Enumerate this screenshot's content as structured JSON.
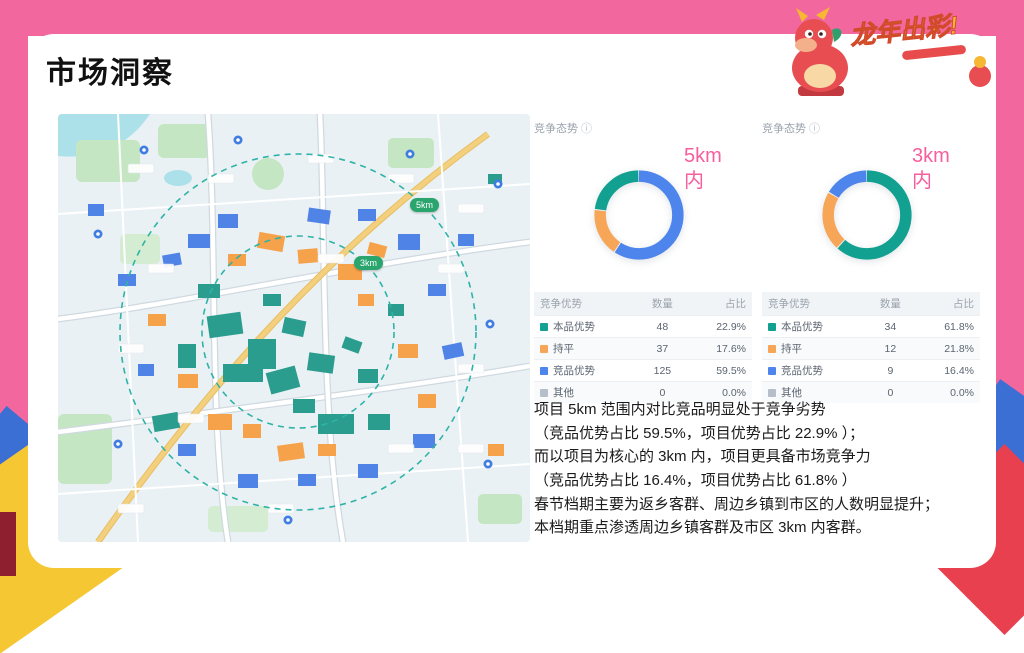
{
  "slide": {
    "title": "市场洞察",
    "mascot_text": "龙年出彩!"
  },
  "map": {
    "outer_ring_label": "5km",
    "inner_ring_label": "3km"
  },
  "charts": [
    {
      "header": "竞争态势",
      "info_icon": "ⓘ",
      "range_label": "5km 内",
      "table": {
        "columns": [
          "竞争优势",
          "数量",
          "占比"
        ],
        "rows": [
          {
            "label": "本品优势",
            "count": "48",
            "pct": "22.9%",
            "color": "#12a091"
          },
          {
            "label": "持平",
            "count": "37",
            "pct": "17.6%",
            "color": "#f7a556"
          },
          {
            "label": "竞品优势",
            "count": "125",
            "pct": "59.5%",
            "color": "#4d85ec"
          },
          {
            "label": "其他",
            "count": "0",
            "pct": "0.0%",
            "color": "#b6bfc9"
          }
        ]
      },
      "donut": {
        "segments": [
          {
            "pct": 59.5,
            "color": "#4d85ec"
          },
          {
            "pct": 17.6,
            "color": "#f7a556"
          },
          {
            "pct": 22.9,
            "color": "#12a091"
          }
        ]
      }
    },
    {
      "header": "竞争态势",
      "info_icon": "ⓘ",
      "range_label": "3km 内",
      "table": {
        "columns": [
          "竞争优势",
          "数量",
          "占比"
        ],
        "rows": [
          {
            "label": "本品优势",
            "count": "34",
            "pct": "61.8%",
            "color": "#12a091"
          },
          {
            "label": "持平",
            "count": "12",
            "pct": "21.8%",
            "color": "#f7a556"
          },
          {
            "label": "竞品优势",
            "count": "9",
            "pct": "16.4%",
            "color": "#4d85ec"
          },
          {
            "label": "其他",
            "count": "0",
            "pct": "0.0%",
            "color": "#b6bfc9"
          }
        ]
      },
      "donut": {
        "segments": [
          {
            "pct": 61.8,
            "color": "#12a091"
          },
          {
            "pct": 21.8,
            "color": "#f7a556"
          },
          {
            "pct": 16.4,
            "color": "#4d85ec"
          }
        ]
      }
    }
  ],
  "chart_data": [
    {
      "type": "pie",
      "donut": true,
      "title": "竞争态势（5km 内）",
      "labels": [
        "本品优势",
        "持平",
        "竞品优势",
        "其他"
      ],
      "values": [
        48,
        37,
        125,
        0
      ],
      "percentages": [
        22.9,
        17.6,
        59.5,
        0.0
      ],
      "colors": [
        "#12a091",
        "#f7a556",
        "#4d85ec",
        "#b6bfc9"
      ],
      "legend_position": "table-below"
    },
    {
      "type": "pie",
      "donut": true,
      "title": "竞争态势（3km 内）",
      "labels": [
        "本品优势",
        "持平",
        "竞品优势",
        "其他"
      ],
      "values": [
        34,
        12,
        9,
        0
      ],
      "percentages": [
        61.8,
        21.8,
        16.4,
        0.0
      ],
      "colors": [
        "#12a091",
        "#f7a556",
        "#4d85ec",
        "#b6bfc9"
      ],
      "legend_position": "table-below"
    }
  ],
  "summary_lines": [
    "项目 5km 范围内对比竞品明显处于竞争劣势",
    "（竞品优势占比 59.5%，项目优势占比 22.9% ）；",
    "而以项目为核心的 3km 内，项目更具备市场竞争力",
    "（竞品优势占比 16.4%，项目优势占比 61.8% ）",
    "春节档期主要为返乡客群、周边乡镇到市区的人数明显提升；",
    "本档期重点渗透周边乡镇客群及市区 3km 内客群。"
  ]
}
